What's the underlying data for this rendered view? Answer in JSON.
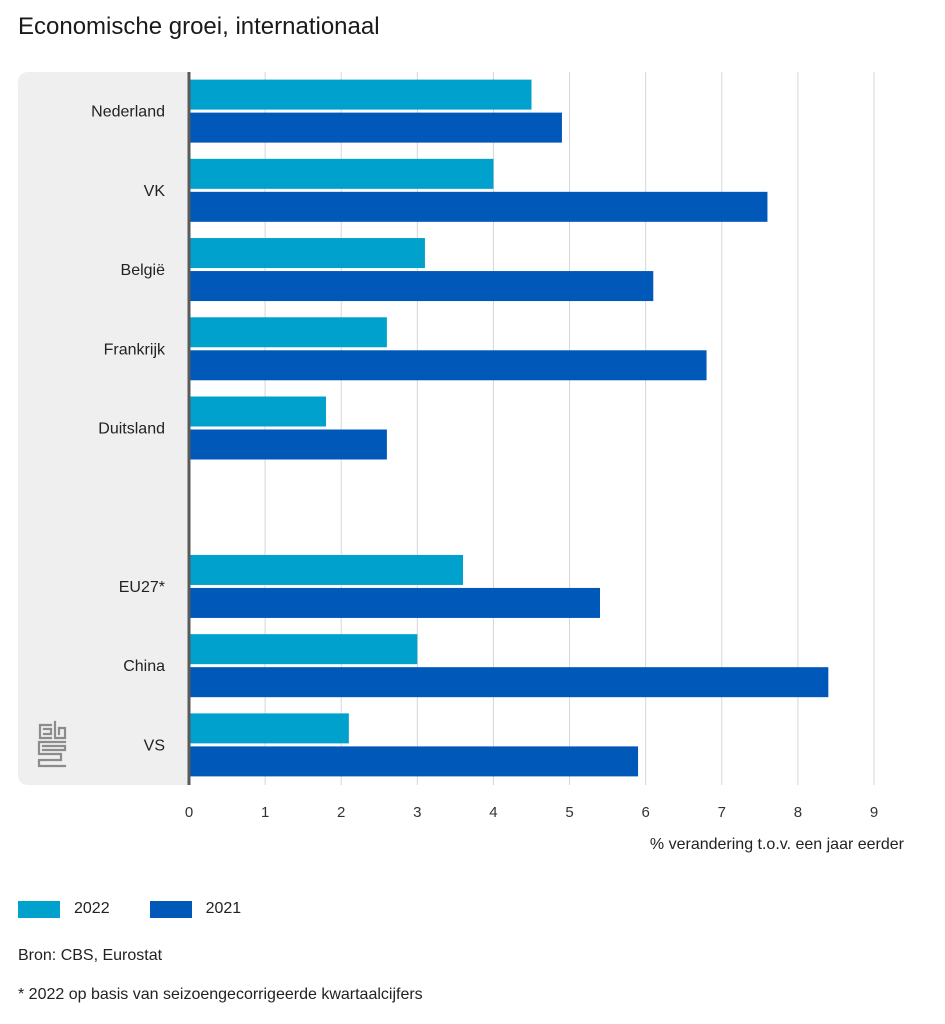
{
  "chart_data": {
    "type": "bar",
    "orientation": "horizontal",
    "title": "Economische groei, internationaal",
    "categories": [
      "Nederland",
      "VK",
      "België",
      "Frankrijk",
      "Duitsland",
      "EU27*",
      "China",
      "VS"
    ],
    "series": [
      {
        "name": "2022",
        "color": "#00a1cd",
        "values": [
          4.5,
          4.0,
          3.1,
          2.6,
          1.8,
          3.6,
          3.0,
          2.1
        ]
      },
      {
        "name": "2021",
        "color": "#0058b8",
        "values": [
          4.9,
          7.6,
          6.1,
          6.8,
          2.6,
          5.4,
          8.4,
          5.9
        ]
      }
    ],
    "xlabel": "% verandering t.o.v. een jaar eerder",
    "ylabel": "",
    "xlim": [
      0,
      9
    ],
    "xticks": [
      0,
      1,
      2,
      3,
      4,
      5,
      6,
      7,
      8,
      9
    ],
    "grid": true,
    "legend_position": "bottom-left"
  },
  "source": "Bron: CBS, Eurostat",
  "note": "* 2022 op basis van seizoengecorrigeerde kwartaalcijfers",
  "logo": "cbs-logo",
  "colors": {
    "label_panel": "#efefef",
    "axis": "#5a5a5a",
    "grid": "#d6d6d6",
    "logo": "#8c8c8c"
  }
}
